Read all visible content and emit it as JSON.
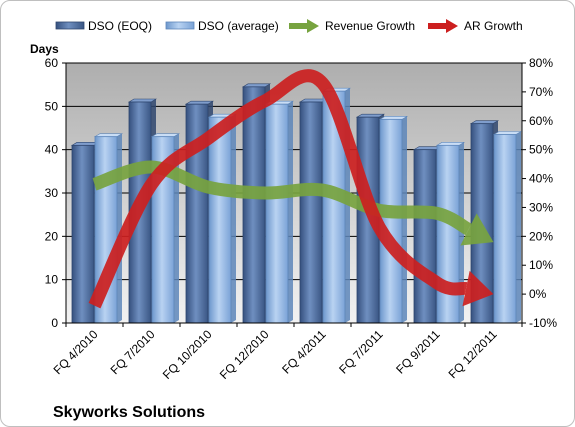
{
  "chart_data": {
    "type": "bar",
    "title": "Skyworks Solutions",
    "ylabel": "Days",
    "ylim": [
      0,
      60
    ],
    "y_ticks": [
      "0",
      "10",
      "20",
      "30",
      "40",
      "50",
      "60"
    ],
    "y2lim": [
      -10,
      80
    ],
    "y2_ticks": [
      "-10%",
      "0%",
      "10%",
      "20%",
      "30%",
      "40%",
      "50%",
      "60%",
      "70%",
      "80%"
    ],
    "categories": [
      "FQ 4/2010",
      "FQ 7/2010",
      "FQ 10/2010",
      "FQ 12/2010",
      "FQ 4/2011",
      "FQ 7/2011",
      "FQ 9/2011",
      "FQ 12/2011"
    ],
    "grid": true,
    "legend_position": "top",
    "series": [
      {
        "name": "DSO (EOQ)",
        "type": "bar",
        "axis": "left",
        "color": "#4f6fa0",
        "values": [
          41,
          51,
          50.5,
          54.5,
          51,
          47.5,
          40,
          46
        ]
      },
      {
        "name": "DSO (average)",
        "type": "bar",
        "axis": "left",
        "color": "#8fb4e3",
        "values": [
          43,
          43,
          47.5,
          50.5,
          53.5,
          47,
          41,
          43.5
        ]
      },
      {
        "name": "Revenue Growth",
        "type": "line",
        "axis": "right",
        "color": "#77a33f",
        "values": [
          38,
          44,
          37,
          35,
          36,
          29,
          28,
          18
        ]
      },
      {
        "name": "AR Growth",
        "type": "line",
        "axis": "right",
        "color": "#cc1f1f",
        "values": [
          -4,
          38,
          54,
          67,
          73,
          23,
          4,
          0
        ]
      }
    ]
  }
}
